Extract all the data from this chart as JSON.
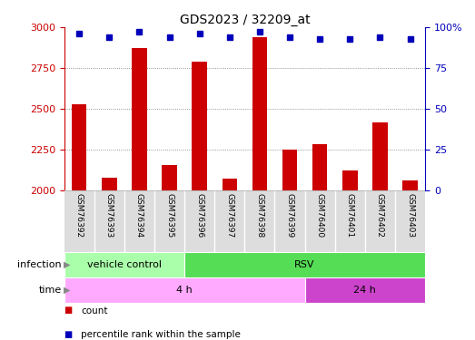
{
  "title": "GDS2023 / 32209_at",
  "samples": [
    "GSM76392",
    "GSM76393",
    "GSM76394",
    "GSM76395",
    "GSM76396",
    "GSM76397",
    "GSM76398",
    "GSM76399",
    "GSM76400",
    "GSM76401",
    "GSM76402",
    "GSM76403"
  ],
  "counts": [
    2530,
    2080,
    2870,
    2155,
    2790,
    2070,
    2940,
    2250,
    2285,
    2125,
    2415,
    2060
  ],
  "percentile_ranks": [
    96,
    94,
    97,
    94,
    96,
    94,
    97,
    94,
    93,
    93,
    94,
    93
  ],
  "ylim_left": [
    2000,
    3000
  ],
  "ylim_right": [
    0,
    100
  ],
  "yticks_left": [
    2000,
    2250,
    2500,
    2750,
    3000
  ],
  "yticks_right": [
    0,
    25,
    50,
    75,
    100
  ],
  "bar_color": "#cc0000",
  "dot_color": "#0000bb",
  "infection_groups": [
    {
      "label": "vehicle control",
      "start": 0,
      "end": 3,
      "color": "#aaffaa"
    },
    {
      "label": "RSV",
      "start": 4,
      "end": 11,
      "color": "#55dd55"
    }
  ],
  "time_groups": [
    {
      "label": "4 h",
      "start": 0,
      "end": 7,
      "color": "#ffaaff"
    },
    {
      "label": "24 h",
      "start": 8,
      "end": 11,
      "color": "#cc44cc"
    }
  ],
  "sample_bg": "#dddddd",
  "bar_width": 0.5,
  "grid_linestyle": "dotted",
  "grid_color": "#777777",
  "legend_items": [
    {
      "color": "#cc0000",
      "label": "count"
    },
    {
      "color": "#0000bb",
      "label": "percentile rank within the sample"
    }
  ]
}
